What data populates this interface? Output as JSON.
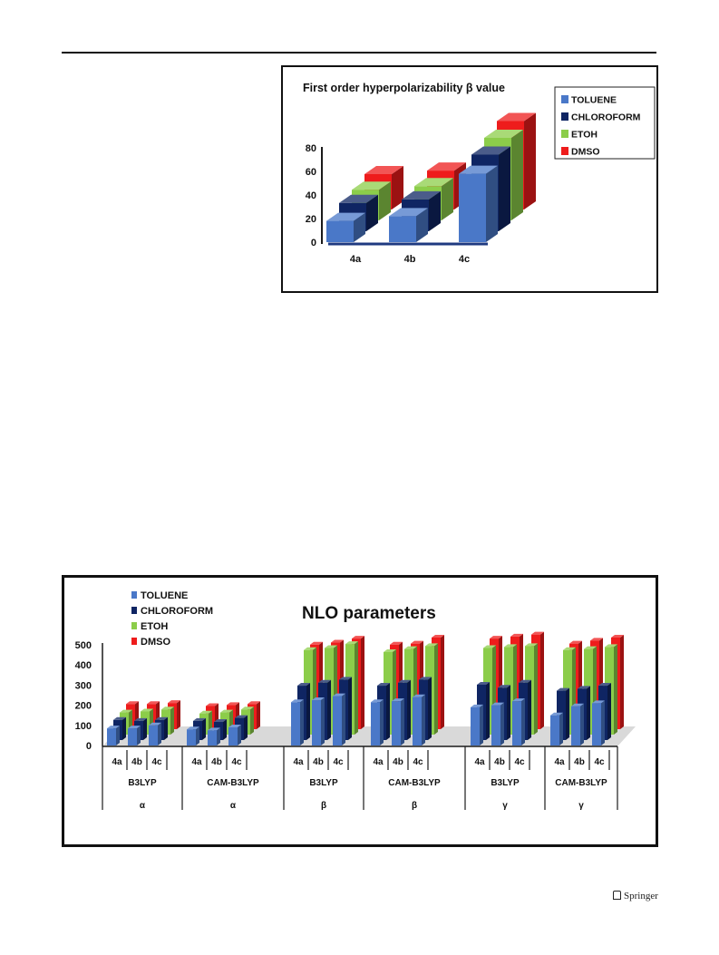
{
  "publisher": {
    "name": "Springer",
    "icon": "springer-horse-icon"
  },
  "colors": {
    "TOLUENE": "#4a78c8",
    "CHLOROFORM": "#0f2563",
    "ETOH": "#8ccd4a",
    "DMSO": "#ee1c1c"
  },
  "chart_data": [
    {
      "type": "bar",
      "title": "First order hyperpolarizability β value",
      "categories": [
        "4a",
        "4b",
        "4c"
      ],
      "series": [
        {
          "name": "TOLUENE",
          "values": [
            18,
            22,
            58
          ]
        },
        {
          "name": "CHLOROFORM",
          "values": [
            24,
            27,
            65
          ]
        },
        {
          "name": "ETOH",
          "values": [
            26,
            29,
            70
          ]
        },
        {
          "name": "DMSO",
          "values": [
            30,
            33,
            75
          ]
        }
      ],
      "ylim": [
        0,
        80
      ],
      "yticks": [
        "0",
        "20",
        "40",
        "60",
        "80"
      ],
      "legend": "top-right",
      "grid": false
    },
    {
      "type": "bar",
      "title": "NLO parameters",
      "categories": [
        "4a",
        "4b",
        "4c"
      ],
      "groups": [
        {
          "method": "B3LYP",
          "parameter": "α"
        },
        {
          "method": "CAM-B3LYP",
          "parameter": "α"
        },
        {
          "method": "B3LYP",
          "parameter": "β"
        },
        {
          "method": "CAM-B3LYP",
          "parameter": "β"
        },
        {
          "method": "B3LYP",
          "parameter": "γ"
        },
        {
          "method": "CAM-B3LYP",
          "parameter": "γ"
        }
      ],
      "series": [
        {
          "name": "TOLUENE",
          "values": [
            [
              85,
              85,
              100
            ],
            [
              80,
              75,
              90
            ],
            [
              215,
              225,
              245
            ],
            [
              215,
              220,
              240
            ],
            [
              190,
              200,
              220
            ],
            [
              150,
              195,
              210
            ]
          ]
        },
        {
          "name": "CHLOROFORM",
          "values": [
            [
              100,
              95,
              100
            ],
            [
              95,
              90,
              110
            ],
            [
              270,
              285,
              300
            ],
            [
              270,
              285,
              300
            ],
            [
              275,
              260,
              285
            ],
            [
              245,
              255,
              270
            ]
          ]
        },
        {
          "name": "ETOH",
          "values": [
            [
              110,
              115,
              125
            ],
            [
              105,
              110,
              125
            ],
            [
              420,
              430,
              450
            ],
            [
              410,
              425,
              440
            ],
            [
              430,
              435,
              440
            ],
            [
              420,
              425,
              435
            ]
          ]
        },
        {
          "name": "DMSO",
          "values": [
            [
              125,
              125,
              130
            ],
            [
              115,
              120,
              125
            ],
            [
              420,
              430,
              450
            ],
            [
              420,
              425,
              455
            ],
            [
              450,
              460,
              470
            ],
            [
              425,
              440,
              455
            ]
          ]
        }
      ],
      "ylim": [
        0,
        500
      ],
      "yticks": [
        "0",
        "100",
        "200",
        "300",
        "400",
        "500"
      ],
      "legend": "top-left",
      "grid": false
    }
  ]
}
